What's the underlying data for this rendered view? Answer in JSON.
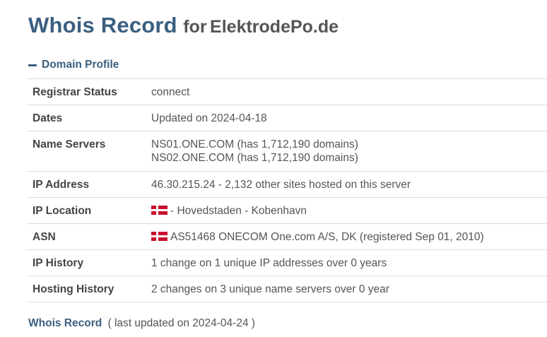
{
  "header": {
    "title": "Whois Record",
    "for_text": "for",
    "domain": "ElektrodePo.de"
  },
  "section": {
    "label": "Domain Profile"
  },
  "profile": {
    "registrar_status": {
      "label": "Registrar Status",
      "value": "connect"
    },
    "dates": {
      "label": "Dates",
      "value": "Updated on 2024-04-18"
    },
    "name_servers": {
      "label": "Name Servers",
      "values": [
        "NS01.ONE.COM (has 1,712,190 domains)",
        "NS02.ONE.COM (has 1,712,190 domains)"
      ]
    },
    "ip_address": {
      "label": "IP Address",
      "value": "46.30.215.24 - 2,132 other sites hosted on this server"
    },
    "ip_location": {
      "label": "IP Location",
      "flag_icon": "denmark-flag-icon",
      "value": "- Hovedstaden - Kobenhavn"
    },
    "asn": {
      "label": "ASN",
      "flag_icon": "denmark-flag-icon",
      "value": "AS51468 ONECOM One.com A/S, DK (registered Sep 01, 2010)"
    },
    "ip_history": {
      "label": "IP History",
      "value": "1 change on 1 unique IP addresses over 0 years"
    },
    "hosting_history": {
      "label": "Hosting History",
      "value": "2 changes on 3 unique name servers over 0 year"
    }
  },
  "footer": {
    "link_label": "Whois Record",
    "note": "( last updated on 2024-04-24 )"
  },
  "colors": {
    "accent": "#3b5f7f",
    "text": "#555555",
    "divider": "#dcdcdc",
    "flag_red": "#c8102e"
  }
}
